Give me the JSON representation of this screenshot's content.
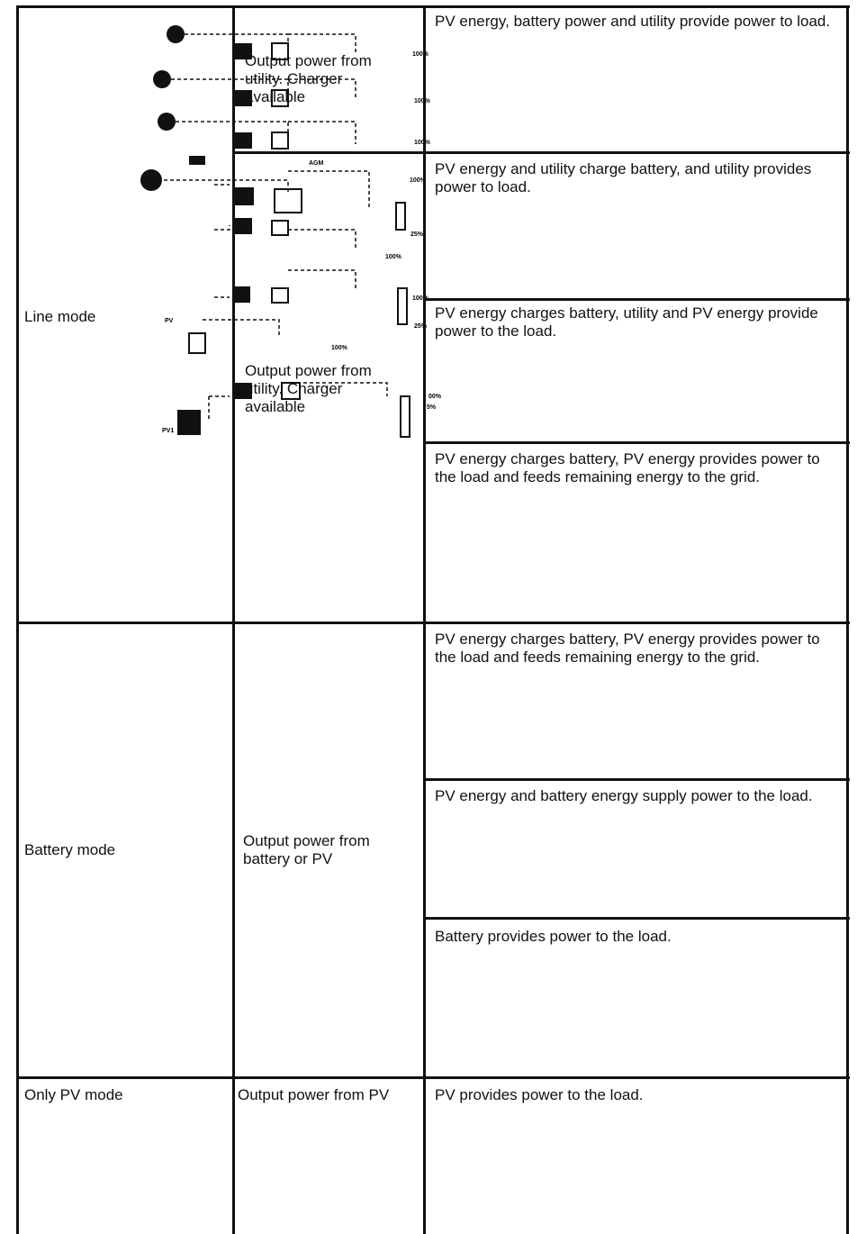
{
  "table": {
    "rows": [
      {
        "mode": "Line mode",
        "output": "Output power from utility. Charger available",
        "descriptions": [
          "PV energy, battery power and utility provide power to load.",
          "PV energy and utility charge battery, and utility provides power to load.",
          "PV energy charges battery, utility and PV energy provide power to the load.",
          "PV energy charges battery, PV energy provides power to the load and feeds remaining energy to the grid."
        ]
      },
      {
        "mode": "Battery mode",
        "output": "Output power from battery or PV",
        "descriptions": [
          "PV energy charges battery, PV energy provides power to the load and feeds remaining energy to the grid.",
          "PV energy and battery energy supply power to the load.",
          "Battery provides power to the load."
        ]
      },
      {
        "mode": "Only PV mode",
        "output": "Output power from PV",
        "descriptions": [
          "PV provides power to the load."
        ]
      }
    ]
  },
  "diagram": {
    "labels": [
      "100%",
      "100%",
      "100%",
      "AGM",
      "100%",
      "25%",
      "100%",
      "100%",
      "25%",
      "PV",
      "100%",
      "00%",
      "5%",
      "PV1"
    ]
  }
}
